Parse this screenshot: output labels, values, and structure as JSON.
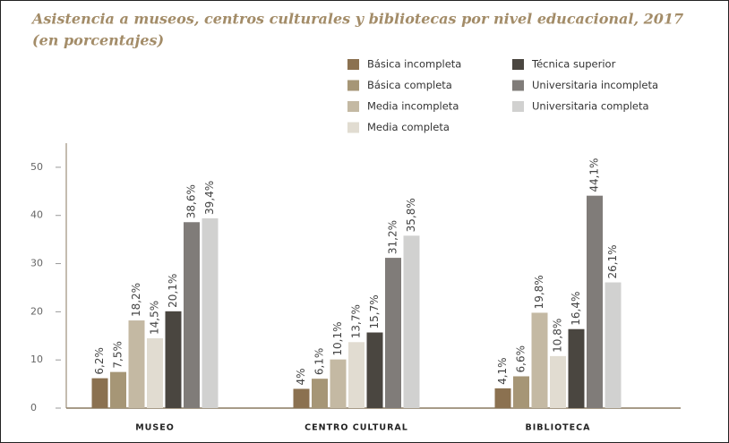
{
  "chart_data": {
    "type": "bar",
    "title": "Asistencia a museos, centros culturales y bibliotecas por nivel educacional, 2017",
    "subtitle": "(en porcentajes)",
    "categories": [
      "MUSEO",
      "CENTRO CULTURAL",
      "BIBLIOTECA"
    ],
    "series": [
      {
        "name": "Básica incompleta",
        "color": "#8b7150",
        "values": [
          6.2,
          4,
          4.1
        ],
        "value_labels": [
          "6,2%",
          "4%",
          "4,1%"
        ]
      },
      {
        "name": "Básica completa",
        "color": "#a69676",
        "values": [
          7.5,
          6.1,
          6.6
        ],
        "value_labels": [
          "7,5%",
          "6,1%",
          "6,6%"
        ]
      },
      {
        "name": "Media incompleta",
        "color": "#c4b9a3",
        "values": [
          18.2,
          10.1,
          19.8
        ],
        "value_labels": [
          "18,2%",
          "10,1%",
          "19,8%"
        ]
      },
      {
        "name": "Media completa",
        "color": "#e1dcd1",
        "values": [
          14.5,
          13.7,
          10.8
        ],
        "value_labels": [
          "14,5%",
          "13,7%",
          "10,8%"
        ]
      },
      {
        "name": "Técnica superior",
        "color": "#4a4640",
        "values": [
          20.1,
          15.7,
          16.4
        ],
        "value_labels": [
          "20,1%",
          "15,7%",
          "16,4%"
        ]
      },
      {
        "name": "Universitaria incompleta",
        "color": "#807c79",
        "values": [
          38.6,
          31.2,
          44.1
        ],
        "value_labels": [
          "38,6%",
          "31,2%",
          "44,1%"
        ]
      },
      {
        "name": "Universitaria completa",
        "color": "#d1d1d0",
        "values": [
          39.4,
          35.8,
          26.1
        ],
        "value_labels": [
          "39,4%",
          "35,8%",
          "26,1%"
        ]
      }
    ],
    "ylim": [
      0,
      55
    ],
    "yticks": [
      0,
      10,
      20,
      30,
      40,
      50
    ],
    "grid": false
  }
}
